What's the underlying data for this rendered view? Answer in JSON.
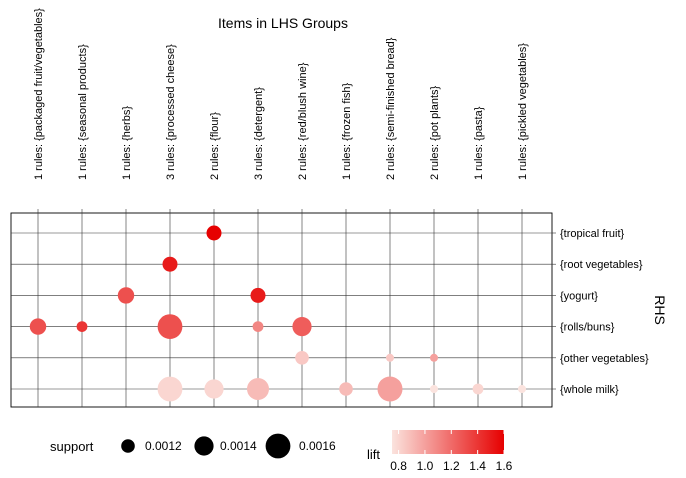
{
  "chart_data": {
    "type": "scatter",
    "title": "Items in LHS Groups",
    "ylabel": "RHS",
    "columns": [
      "1 rules: {packaged fruit/vegetables}",
      "1 rules: {seasonal products}",
      "1 rules: {herbs}",
      "3 rules: {processed cheese}",
      "2 rules: {flour}",
      "3 rules: {detergent}",
      "2 rules: {red/blush wine}",
      "1 rules: {frozen fish}",
      "2 rules: {semi-finished bread}",
      "2 rules: {pot plants}",
      "1 rules: {pasta}",
      "1 rules: {pickled vegetables}"
    ],
    "rows": [
      "{tropical fruit}",
      "{root vegetables}",
      "{yogurt}",
      "{rolls/buns}",
      "{other vegetables}",
      "{whole milk}"
    ],
    "points": [
      {
        "col": 4,
        "row": 0,
        "support": 0.00125,
        "lift": 1.6
      },
      {
        "col": 3,
        "row": 1,
        "support": 0.00125,
        "lift": 1.5
      },
      {
        "col": 2,
        "row": 2,
        "support": 0.0013,
        "lift": 1.3
      },
      {
        "col": 5,
        "row": 2,
        "support": 0.00125,
        "lift": 1.5
      },
      {
        "col": 0,
        "row": 3,
        "support": 0.0013,
        "lift": 1.3
      },
      {
        "col": 1,
        "row": 3,
        "support": 0.0011,
        "lift": 1.4
      },
      {
        "col": 3,
        "row": 3,
        "support": 0.0016,
        "lift": 1.3
      },
      {
        "col": 5,
        "row": 3,
        "support": 0.0011,
        "lift": 1.1
      },
      {
        "col": 6,
        "row": 3,
        "support": 0.0014,
        "lift": 1.25
      },
      {
        "col": 6,
        "row": 4,
        "support": 0.0012,
        "lift": 0.85
      },
      {
        "col": 8,
        "row": 4,
        "support": 0.001,
        "lift": 0.85
      },
      {
        "col": 9,
        "row": 4,
        "support": 0.001,
        "lift": 1.0
      },
      {
        "col": 3,
        "row": 5,
        "support": 0.0016,
        "lift": 0.8
      },
      {
        "col": 4,
        "row": 5,
        "support": 0.0014,
        "lift": 0.8
      },
      {
        "col": 5,
        "row": 5,
        "support": 0.0015,
        "lift": 0.9
      },
      {
        "col": 7,
        "row": 5,
        "support": 0.0012,
        "lift": 0.9
      },
      {
        "col": 8,
        "row": 5,
        "support": 0.0017,
        "lift": 1.0
      },
      {
        "col": 9,
        "row": 5,
        "support": 0.001,
        "lift": 0.75
      },
      {
        "col": 10,
        "row": 5,
        "support": 0.0011,
        "lift": 0.8
      },
      {
        "col": 11,
        "row": 5,
        "support": 0.001,
        "lift": 0.75
      }
    ],
    "size_legend": {
      "title": "support",
      "values": [
        0.0012,
        0.0014,
        0.0016
      ],
      "labels": [
        "0.0012",
        "0.0014",
        "0.0016"
      ]
    },
    "color_legend": {
      "title": "lift",
      "range": [
        0.75,
        1.6
      ],
      "ticks": [
        0.8,
        1.0,
        1.2,
        1.4,
        1.6
      ],
      "tick_labels": [
        "0.8",
        "1.0",
        "1.2",
        "1.4",
        "1.6"
      ],
      "low_color": "#fbe3de",
      "high_color": "#e60000"
    },
    "grid": true,
    "legend_position": "bottom"
  }
}
